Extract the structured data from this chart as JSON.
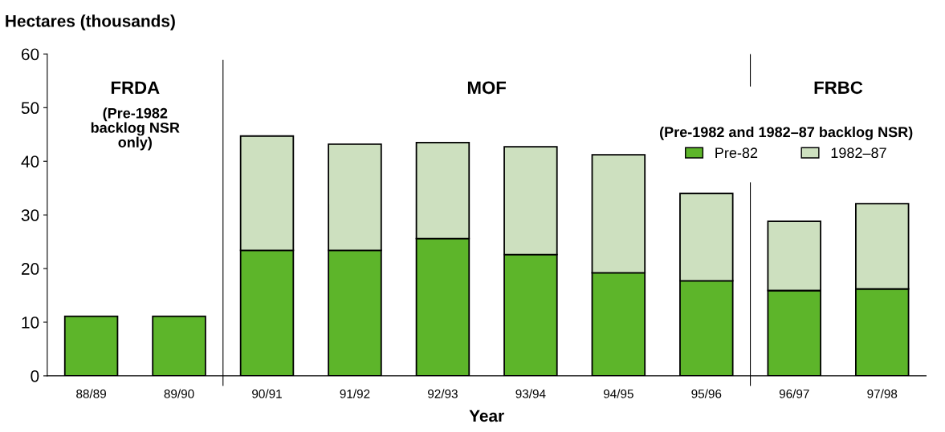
{
  "chart_data": {
    "type": "bar",
    "stacked": true,
    "ylabel": "Hectares (thousands)",
    "xlabel": "Year",
    "categories": [
      "88/89",
      "89/90",
      "90/91",
      "91/92",
      "92/93",
      "93/94",
      "94/95",
      "95/96",
      "96/97",
      "97/98"
    ],
    "series": [
      {
        "name": "Pre-82",
        "color": "#5db52a",
        "values": [
          11.1,
          11.1,
          23.4,
          23.4,
          25.6,
          22.6,
          19.2,
          17.7,
          15.9,
          16.2
        ]
      },
      {
        "name": "1982–87",
        "color": "#cde0bf",
        "values": [
          null,
          null,
          21.3,
          19.8,
          17.9,
          20.1,
          22.0,
          16.3,
          12.9,
          15.9
        ]
      }
    ],
    "ylim": [
      0,
      60
    ],
    "yticks": [
      0,
      10,
      20,
      30,
      40,
      50,
      60
    ],
    "grid": false,
    "legend": "top right",
    "legend_title": "(Pre-1982 and 1982–87 backlog NSR)",
    "annotations": [
      "FRDA",
      "(Pre-1982\nbacklog NSR\nonly)",
      "MOF",
      "FRBC"
    ]
  }
}
